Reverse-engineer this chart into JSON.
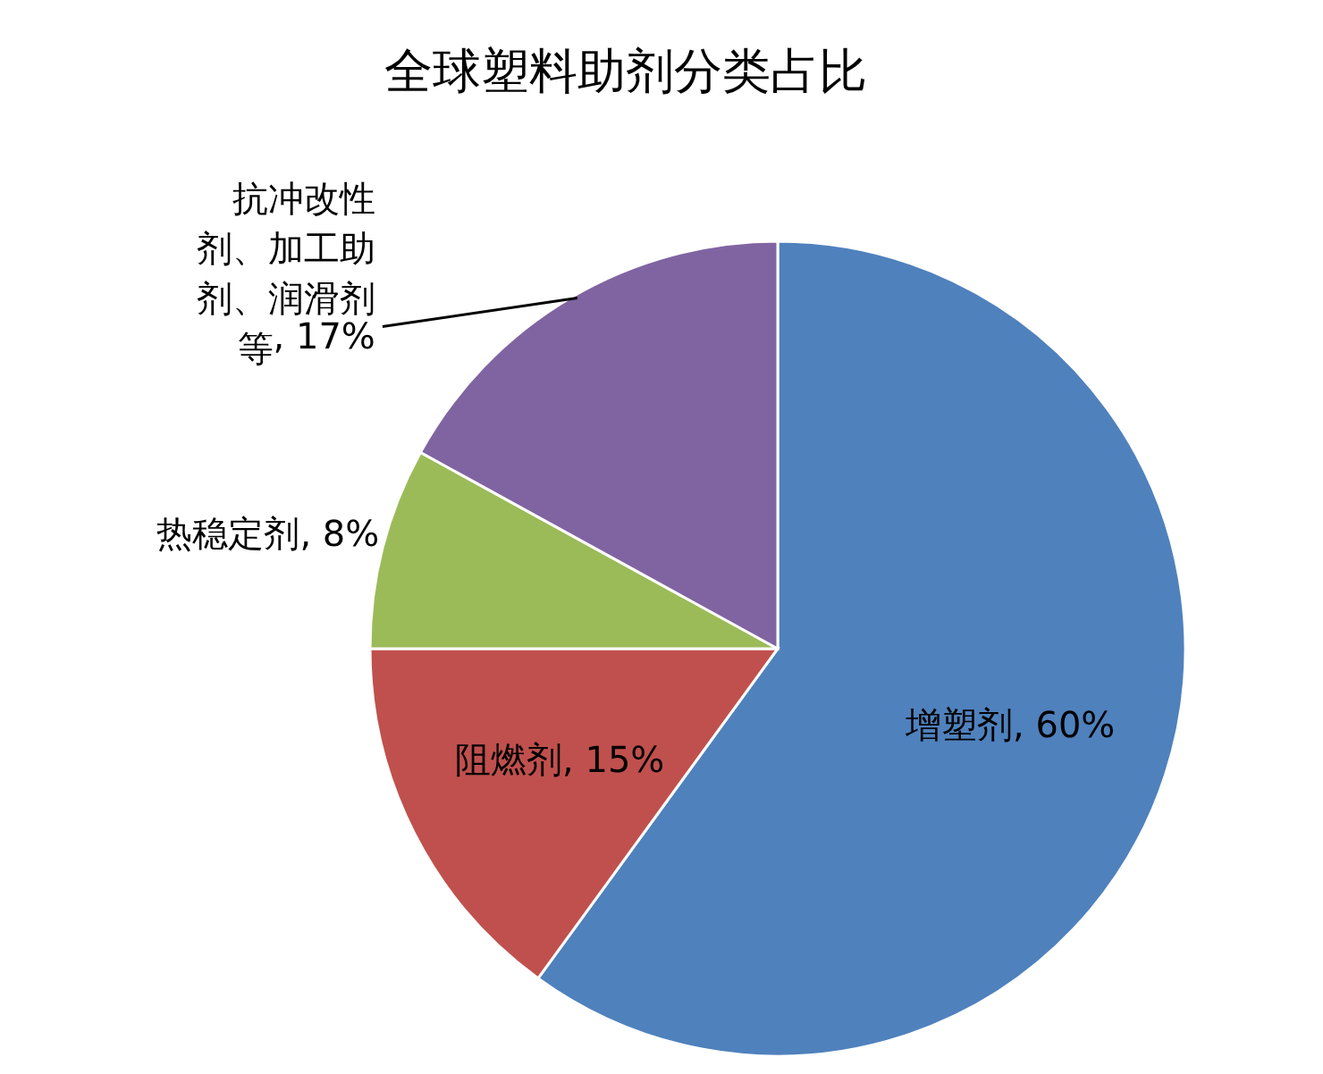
{
  "chart_data": {
    "type": "pie",
    "title": "全球塑料助剂分类占比",
    "categories": [
      "增塑剂",
      "阻燃剂",
      "热稳定剂",
      "抗冲改性剂、加工助剂、润滑剂等"
    ],
    "values": [
      60,
      15,
      8,
      17
    ],
    "colors": [
      "#4f81bd",
      "#c0504d",
      "#9bbb59",
      "#8064a2"
    ],
    "value_labels": [
      ", 60%",
      ", 15%",
      ", 8%",
      ", 17%"
    ],
    "legend": false
  }
}
